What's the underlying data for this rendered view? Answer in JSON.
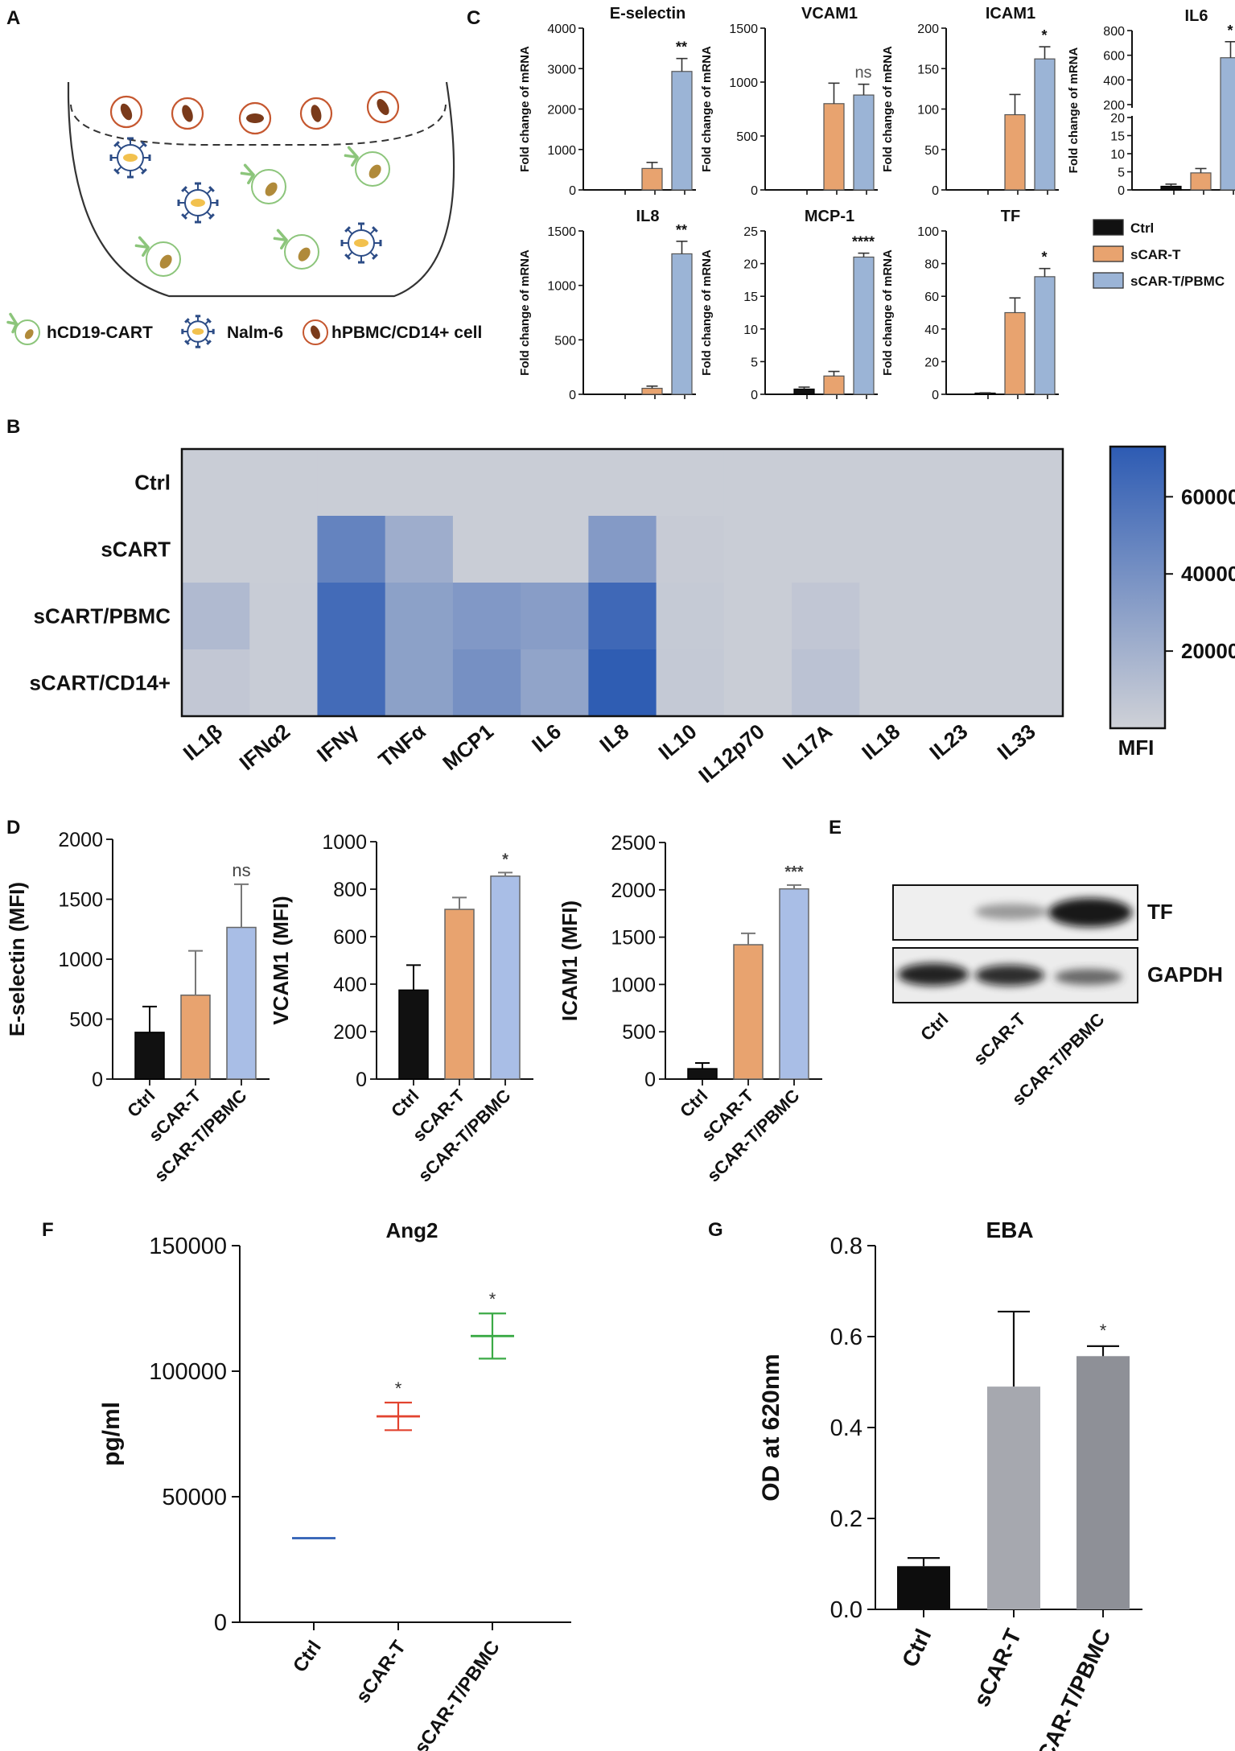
{
  "panel_labels": {
    "a": "A",
    "b": "B",
    "c": "C",
    "d": "D",
    "e": "E",
    "f": "F",
    "g": "G"
  },
  "colors": {
    "ctrl": "#111111",
    "scart": "#E8A36F",
    "pbmc": "#9BB4D6",
    "pbmc_d": "#A9BEE6",
    "heat_low": "#CFD1D7",
    "heat_high": "#2D5BB3",
    "ang_ctrl": "#2F5FB5",
    "ang_scart": "#E2432F",
    "ang_pbmc": "#3BAA46",
    "eba_ctrl": "#0d0d0d",
    "eba_scart": "#A6A8AF",
    "eba_pbmc": "#8E9097",
    "cell_brown": "#7A3A1A",
    "cell_ring": "#C5572F",
    "cart_green": "#8CC57B",
    "nalm_blue": "#2C4C86",
    "nucleus_tan": "#B08A3A"
  },
  "panel_a": {
    "legend": [
      {
        "icon": "cart-cell-icon",
        "label": "hCD19-CART"
      },
      {
        "icon": "nalm6-cell-icon",
        "label": "Nalm-6"
      },
      {
        "icon": "pbmc-cell-icon",
        "label": "hPBMC/CD14+ cell"
      }
    ]
  },
  "panel_c": {
    "ylabel": "Fold change of mRNA",
    "legend": [
      "Ctrl",
      "sCAR-T",
      "sCAR-T/PBMC"
    ],
    "charts": [
      {
        "title": "E-selectin",
        "ticks": [
          "0",
          "1000",
          "2000",
          "3000",
          "4000"
        ],
        "ylim": [
          0,
          4000
        ],
        "values": [
          0,
          530,
          2930
        ],
        "errors": [
          0,
          150,
          320
        ],
        "sig": "**"
      },
      {
        "title": "VCAM1",
        "ticks": [
          "0",
          "500",
          "1000",
          "1500"
        ],
        "ylim": [
          0,
          1500
        ],
        "values": [
          0,
          800,
          880
        ],
        "errors": [
          0,
          190,
          100
        ],
        "sig": "ns"
      },
      {
        "title": "ICAM1",
        "ticks": [
          "0",
          "50",
          "100",
          "150",
          "200"
        ],
        "ylim": [
          0,
          200
        ],
        "values": [
          0,
          93,
          162
        ],
        "errors": [
          0,
          25,
          15
        ],
        "sig": "*"
      },
      {
        "title": "IL6",
        "ticks": [
          "0",
          "5",
          "10",
          "15",
          "20",
          "200",
          "400",
          "600",
          "800"
        ],
        "ylim": [
          0,
          800
        ],
        "values": [
          1,
          4.7,
          580
        ],
        "errors": [
          0.6,
          1.2,
          130
        ],
        "sig": "*",
        "broken_axis": true
      },
      {
        "title": "IL8",
        "ticks": [
          "0",
          "500",
          "1000",
          "1500"
        ],
        "ylim": [
          0,
          1500
        ],
        "values": [
          0,
          55,
          1290
        ],
        "errors": [
          0,
          20,
          115
        ],
        "sig": "**"
      },
      {
        "title": "MCP-1",
        "ticks": [
          "0",
          "5",
          "10",
          "15",
          "20",
          "25"
        ],
        "ylim": [
          0,
          25
        ],
        "values": [
          0.8,
          2.8,
          21
        ],
        "errors": [
          0.3,
          0.7,
          0.6
        ],
        "sig": "****"
      },
      {
        "title": "TF",
        "ticks": [
          "0",
          "20",
          "40",
          "60",
          "80",
          "100"
        ],
        "ylim": [
          0,
          100
        ],
        "values": [
          0.6,
          50,
          72
        ],
        "errors": [
          0.3,
          9,
          5
        ],
        "sig": "*"
      }
    ]
  },
  "chart_data": {
    "type": "heatmap",
    "title": "",
    "rows": [
      "Ctrl",
      "sCART",
      "sCART/PBMC",
      "sCART/CD14+"
    ],
    "columns": [
      "IL1β",
      "IFNα2",
      "IFNγ",
      "TNFα",
      "MCP1",
      "IL6",
      "IL8",
      "IL10",
      "IL12p70",
      "IL17A",
      "IL18",
      "IL23",
      "IL33"
    ],
    "values": [
      [
        2500,
        2500,
        2500,
        2500,
        2500,
        2500,
        2500,
        2500,
        2500,
        2500,
        2500,
        2500,
        2500
      ],
      [
        2500,
        2500,
        48000,
        22000,
        2500,
        2500,
        34000,
        3500,
        2500,
        2500,
        2500,
        2500,
        2500
      ],
      [
        14000,
        3000,
        63000,
        30000,
        35000,
        32000,
        65000,
        4500,
        2500,
        6500,
        2500,
        2500,
        2500
      ],
      [
        6000,
        3000,
        63000,
        30000,
        40000,
        28000,
        72000,
        5000,
        2500,
        9000,
        2500,
        2500,
        2500
      ]
    ],
    "colorbar": {
      "label": "MFI",
      "ticks": [
        "20000",
        "40000",
        "60000"
      ],
      "range": [
        0,
        73000
      ]
    }
  },
  "panel_d": {
    "categories": [
      "Ctrl",
      "sCAR-T",
      "sCAR-T/PBMC"
    ],
    "charts": [
      {
        "ylabel": "E-selectin (MFI)",
        "ticks": [
          "0",
          "500",
          "1000",
          "1500",
          "2000"
        ],
        "ylim": [
          0,
          2000
        ],
        "values": [
          390,
          700,
          1265
        ],
        "errors": [
          215,
          370,
          360
        ],
        "sig": "ns"
      },
      {
        "ylabel": "VCAM1 (MFI)",
        "ticks": [
          "0",
          "200",
          "400",
          "600",
          "800",
          "1000"
        ],
        "ylim": [
          0,
          1000
        ],
        "values": [
          375,
          715,
          855
        ],
        "errors": [
          105,
          50,
          15
        ],
        "sig": "*"
      },
      {
        "ylabel": "ICAM1 (MFI)",
        "ticks": [
          "0",
          "500",
          "1000",
          "1500",
          "2000",
          "2500"
        ],
        "ylim": [
          0,
          2500
        ],
        "values": [
          110,
          1420,
          2010
        ],
        "errors": [
          60,
          120,
          40
        ],
        "sig": "***"
      }
    ]
  },
  "panel_e": {
    "bands": [
      "TF",
      "GAPDH"
    ],
    "lanes": [
      "Ctrl",
      "sCAR-T",
      "sCAR-T/PBMC"
    ]
  },
  "panel_f": {
    "title": "Ang2",
    "ylabel": "pg/ml",
    "ticks": [
      "0",
      "50000",
      "100000",
      "150000"
    ],
    "ylim": [
      0,
      150000
    ],
    "categories": [
      "Ctrl",
      "sCAR-T",
      "sCAR-T/PBMC"
    ],
    "means": [
      33500,
      82000,
      114000
    ],
    "errors": [
      300,
      5500,
      9000
    ],
    "sig": [
      "",
      "*",
      "*"
    ]
  },
  "panel_g": {
    "title": "EBA",
    "ylabel": "OD at 620nm",
    "ticks": [
      "0.0",
      "0.2",
      "0.4",
      "0.6",
      "0.8"
    ],
    "ylim": [
      0,
      0.8
    ],
    "categories": [
      "Ctrl",
      "sCAR-T",
      "sCAR-T/PBMC"
    ],
    "values": [
      0.095,
      0.49,
      0.557
    ],
    "errors": [
      0.018,
      0.165,
      0.022
    ],
    "sig": [
      "",
      "",
      "*"
    ]
  }
}
